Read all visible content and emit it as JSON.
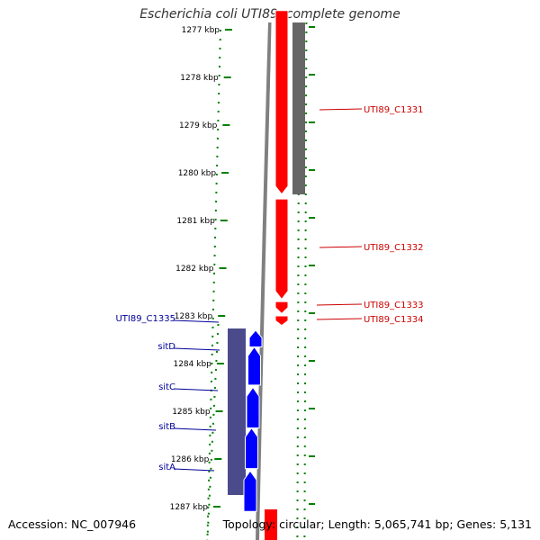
{
  "title": "Escherichia coli UTI89, complete genome",
  "footer": {
    "accession": "Accession: NC_007946",
    "summary": "Topology: circular; Length: 5,065,741 bp; Genes: 5,131"
  },
  "colors": {
    "forward_genes": "#ff0000",
    "reverse_genes": "#0000ff",
    "reverse_band": "#4b4b8c",
    "forward_band": "#666666",
    "backbone": "#808080",
    "ruler": "#008000",
    "forward_labels": "#cc0000",
    "reverse_labels": "#000099"
  },
  "ruler": {
    "unit": "kbp",
    "ticks": [
      "1277 kbp",
      "1278 kbp",
      "1279 kbp",
      "1280 kbp",
      "1281 kbp",
      "1282 kbp",
      "1283 kbp",
      "1284 kbp",
      "1285 kbp",
      "1286 kbp",
      "1287 kbp"
    ]
  },
  "forward_genes": [
    {
      "name": "UTI89_C1331",
      "start_kbp": 1276.6,
      "end_kbp": 1280.45
    },
    {
      "name": "UTI89_C1332",
      "start_kbp": 1280.55,
      "end_kbp": 1282.65
    },
    {
      "name": "UTI89_C1333",
      "start_kbp": 1282.7,
      "end_kbp": 1282.95
    },
    {
      "name": "UTI89_C1334",
      "start_kbp": 1283.0,
      "end_kbp": 1283.2
    }
  ],
  "reverse_genes": [
    {
      "name": "UTI89_C1335",
      "start_kbp": 1283.3,
      "end_kbp": 1283.65
    },
    {
      "name": "sitD",
      "start_kbp": 1283.65,
      "end_kbp": 1284.45
    },
    {
      "name": "sitC",
      "start_kbp": 1284.5,
      "end_kbp": 1285.35
    },
    {
      "name": "sitB",
      "start_kbp": 1285.35,
      "end_kbp": 1286.2
    },
    {
      "name": "sitA",
      "start_kbp": 1286.25,
      "end_kbp": 1287.1
    }
  ]
}
